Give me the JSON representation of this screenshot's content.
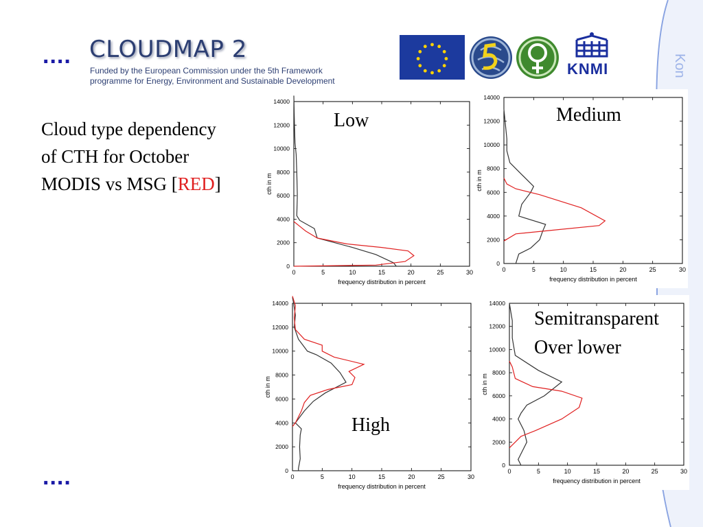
{
  "header": {
    "dots_top": "....",
    "logo_title": "CLOUDMAP 2",
    "logo_line1": "Funded by the European Commission under the 5th Framework",
    "logo_line2": "programme for Energy, Environment and Sustainable Development",
    "partner_logo_knmi_text": "KNMI",
    "side_text": "Kon"
  },
  "headline": {
    "line1": "Cloud type dependency",
    "line2": "of CTH for October",
    "line3_prefix": "MODIS vs MSG [",
    "line3_red": "RED",
    "line3_suffix": "]"
  },
  "footer": {
    "dots_bottom": "...."
  },
  "colors": {
    "accent_blue": "#1a1aa6",
    "msg_red": "#e02020",
    "modis_dark": "#333333",
    "side_blue": "#9db3e8"
  },
  "chart_data": [
    {
      "type": "line",
      "title": "Low",
      "xlabel": "frequency distribution in percent",
      "ylabel": "cth in m",
      "xlim": [
        0,
        30
      ],
      "ylim": [
        0,
        14000
      ],
      "xticks": [
        "0",
        "5",
        "10",
        "15",
        "20",
        "25",
        "30"
      ],
      "yticks": [
        "0",
        "2000",
        "4000",
        "6000",
        "8000",
        "10000",
        "12000",
        "14000"
      ],
      "series": [
        {
          "color": "#333333",
          "points": [
            [
              17.5,
              0
            ],
            [
              17,
              300
            ],
            [
              14,
              1000
            ],
            [
              10,
              1600
            ],
            [
              7,
              2000
            ],
            [
              4,
              2400
            ],
            [
              3.5,
              3200
            ],
            [
              1,
              3900
            ],
            [
              0.5,
              4300
            ],
            [
              0.6,
              6000
            ],
            [
              0.5,
              8000
            ],
            [
              0.4,
              9500
            ],
            [
              0.2,
              10500
            ],
            [
              0.1,
              12000
            ],
            [
              0,
              14500
            ]
          ]
        },
        {
          "color": "#e02020",
          "points": [
            [
              0,
              0
            ],
            [
              14,
              100
            ],
            [
              19,
              400
            ],
            [
              20.5,
              900
            ],
            [
              19.5,
              1300
            ],
            [
              15,
              1600
            ],
            [
              9,
              1900
            ],
            [
              4,
              2400
            ],
            [
              2,
              3000
            ],
            [
              1,
              3400
            ],
            [
              0,
              3800
            ]
          ]
        }
      ]
    },
    {
      "type": "line",
      "title": "Medium",
      "xlabel": "frequency distribution in percent",
      "ylabel": "cth in m",
      "xlim": [
        0,
        30
      ],
      "ylim": [
        0,
        14000
      ],
      "xticks": [
        "0",
        "5",
        "10",
        "15",
        "20",
        "25",
        "30"
      ],
      "yticks": [
        "0",
        "2000",
        "4000",
        "6000",
        "8000",
        "10000",
        "12000",
        "14000"
      ],
      "series": [
        {
          "color": "#333333",
          "points": [
            [
              0,
              0
            ],
            [
              2,
              0
            ],
            [
              2.5,
              800
            ],
            [
              4.5,
              1300
            ],
            [
              6,
              2000
            ],
            [
              6.5,
              2700
            ],
            [
              7,
              3300
            ],
            [
              2.5,
              4000
            ],
            [
              3,
              5000
            ],
            [
              4.5,
              6000
            ],
            [
              5,
              6500
            ],
            [
              3,
              7500
            ],
            [
              1,
              8500
            ],
            [
              0.5,
              9500
            ],
            [
              0.5,
              10500
            ],
            [
              0.2,
              12000
            ],
            [
              0,
              13000
            ]
          ]
        },
        {
          "color": "#e02020",
          "points": [
            [
              0,
              1900
            ],
            [
              2,
              2500
            ],
            [
              8,
              2800
            ],
            [
              16,
              3200
            ],
            [
              17,
              3600
            ],
            [
              13,
              4700
            ],
            [
              6,
              5800
            ],
            [
              2,
              6300
            ],
            [
              0.5,
              6700
            ],
            [
              0,
              7200
            ]
          ]
        }
      ]
    },
    {
      "type": "line",
      "title": "High",
      "xlabel": "frequency distribution in percent",
      "ylabel": "cth in m",
      "xlim": [
        0,
        30
      ],
      "ylim": [
        0,
        14000
      ],
      "xticks": [
        "0",
        "5",
        "10",
        "15",
        "20",
        "25",
        "30"
      ],
      "yticks": [
        "0",
        "2000",
        "4000",
        "6000",
        "8000",
        "10000",
        "12000",
        "14000"
      ],
      "series": [
        {
          "color": "#333333",
          "points": [
            [
              1,
              0
            ],
            [
              1,
              200
            ],
            [
              1.3,
              1000
            ],
            [
              1.2,
              2000
            ],
            [
              1.3,
              3000
            ],
            [
              1.5,
              3500
            ],
            [
              0.5,
              4000
            ],
            [
              2,
              5000
            ],
            [
              3.5,
              5800
            ],
            [
              5.5,
              6500
            ],
            [
              9,
              7400
            ],
            [
              8,
              8200
            ],
            [
              6.5,
              9000
            ],
            [
              4,
              9700
            ],
            [
              2.5,
              10000
            ],
            [
              1,
              11000
            ],
            [
              0.3,
              12000
            ],
            [
              0.5,
              13000
            ],
            [
              0.2,
              14000
            ],
            [
              0,
              14500
            ]
          ]
        },
        {
          "color": "#e02020",
          "points": [
            [
              0,
              3700
            ],
            [
              0.5,
              4000
            ],
            [
              1.5,
              5000
            ],
            [
              2,
              5700
            ],
            [
              3,
              6300
            ],
            [
              6,
              6800
            ],
            [
              10,
              7200
            ],
            [
              10.5,
              7800
            ],
            [
              9.5,
              8300
            ],
            [
              12,
              8900
            ],
            [
              7,
              9500
            ],
            [
              5,
              10000
            ],
            [
              5,
              10500
            ],
            [
              2,
              11000
            ],
            [
              0.5,
              11800
            ],
            [
              0.3,
              12800
            ],
            [
              0.5,
              13800
            ],
            [
              0,
              14600
            ]
          ]
        }
      ]
    },
    {
      "type": "line",
      "title": "Semitransparent\nOver lower",
      "xlabel": "frequency distribution in percent",
      "ylabel": "cth in m",
      "xlim": [
        0,
        30
      ],
      "ylim": [
        0,
        14000
      ],
      "xticks": [
        "0",
        "5",
        "10",
        "15",
        "20",
        "25",
        "30"
      ],
      "yticks": [
        "0",
        "2000",
        "4000",
        "6000",
        "8000",
        "10000",
        "12000",
        "14000"
      ],
      "series": [
        {
          "color": "#333333",
          "points": [
            [
              2,
              0
            ],
            [
              1.5,
              500
            ],
            [
              3,
              2000
            ],
            [
              2.5,
              3000
            ],
            [
              1.5,
              4000
            ],
            [
              2,
              4500
            ],
            [
              3,
              5200
            ],
            [
              6,
              6000
            ],
            [
              9,
              7200
            ],
            [
              5,
              8200
            ],
            [
              1,
              9500
            ],
            [
              0.5,
              11000
            ],
            [
              0.5,
              12500
            ],
            [
              0,
              14000
            ]
          ]
        },
        {
          "color": "#e02020",
          "points": [
            [
              0,
              1500
            ],
            [
              1,
              2000
            ],
            [
              2,
              2500
            ],
            [
              4.5,
              3000
            ],
            [
              9,
              4000
            ],
            [
              12,
              5000
            ],
            [
              12.5,
              5800
            ],
            [
              9,
              6400
            ],
            [
              4,
              6800
            ],
            [
              1,
              7500
            ],
            [
              0.5,
              8500
            ],
            [
              0,
              9000
            ]
          ]
        }
      ]
    }
  ]
}
